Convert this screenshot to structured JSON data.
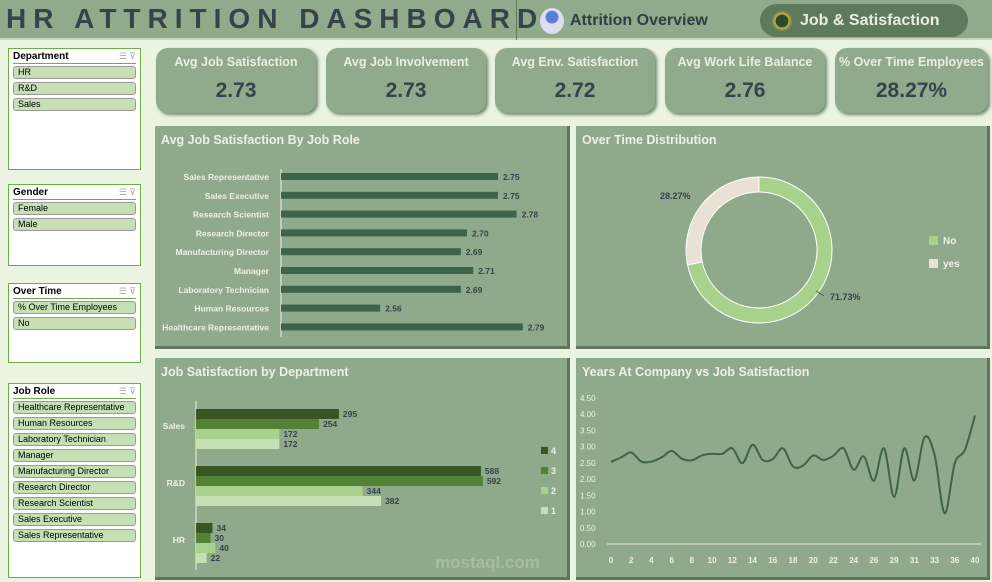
{
  "header": {
    "title": "HR ATTRITION DASHBOARD",
    "nav": [
      {
        "label": "Attrition Overview",
        "icon": "employee-avatar-icon"
      },
      {
        "label": "Job & Satisfaction",
        "icon": "team-satisfaction-icon",
        "active": true
      }
    ]
  },
  "kpis": [
    {
      "label": "Avg Job Satisfaction",
      "value": "2.73"
    },
    {
      "label": "Avg Job Involvement",
      "value": "2.73"
    },
    {
      "label": "Avg Env. Satisfaction",
      "value": "2.72"
    },
    {
      "label": "Avg Work Life Balance",
      "value": "2.76"
    },
    {
      "label": "% Over Time Employees",
      "value": "28.27%"
    }
  ],
  "slicers": [
    {
      "title": "Department",
      "items": [
        "HR",
        "R&D",
        "Sales"
      ]
    },
    {
      "title": "Gender",
      "items": [
        "Female",
        "Male"
      ]
    },
    {
      "title": "Over Time",
      "items": [
        "% Over Time Employees",
        "No"
      ]
    },
    {
      "title": "Job Role",
      "items": [
        "Healthcare Representative",
        "Human Resources",
        "Laboratory Technician",
        "Manager",
        "Manufacturing Director",
        "Research Director",
        "Research Scientist",
        "Sales Executive",
        "Sales Representative"
      ]
    }
  ],
  "colors": {
    "panel": "#8faa8a",
    "bar": "#3e6349",
    "text_dark": "#36434a",
    "no": "#a9d18e",
    "yes": "#e9e1d5",
    "s4": "#375623",
    "s3": "#548235",
    "s2": "#a9d18e",
    "s1": "#c5e0b4"
  },
  "chart_data": [
    {
      "type": "bar",
      "title": "Avg Job Satisfaction By Job Role",
      "orientation": "horizontal",
      "categories": [
        "Sales Representative",
        "Sales Executive",
        "Research Scientist",
        "Research Director",
        "Manufacturing Director",
        "Manager",
        "Laboratory Technician",
        "Human Resources",
        "Healthcare Representative"
      ],
      "values": [
        2.75,
        2.75,
        2.78,
        2.7,
        2.69,
        2.71,
        2.69,
        2.56,
        2.79
      ],
      "labels": [
        "2.75",
        "2.75",
        "2.78",
        "2.70",
        "2.69",
        "2.71",
        "2.69",
        "2.56",
        "2.79"
      ],
      "xlim": [
        2.4,
        2.85
      ]
    },
    {
      "type": "pie",
      "title": "Over Time Distribution",
      "donut": true,
      "categories": [
        "No",
        "yes"
      ],
      "values": [
        71.73,
        28.27
      ],
      "labels": [
        "71.73%",
        "28.27%"
      ],
      "legend": "right"
    },
    {
      "type": "bar",
      "title": "Job Satisfaction by Department",
      "orientation": "horizontal",
      "categories": [
        "Sales",
        "R&D",
        "HR"
      ],
      "series": [
        {
          "name": "4",
          "values": [
            295,
            588,
            34
          ]
        },
        {
          "name": "3",
          "values": [
            254,
            592,
            30
          ]
        },
        {
          "name": "2",
          "values": [
            172,
            344,
            40
          ]
        },
        {
          "name": "1",
          "values": [
            172,
            382,
            22
          ]
        }
      ],
      "legend": "right",
      "xlim": [
        0,
        700
      ]
    },
    {
      "type": "line",
      "title": "Years At Company vs Job Satisfaction",
      "x": [
        0,
        1,
        2,
        3,
        4,
        5,
        6,
        7,
        8,
        9,
        10,
        11,
        12,
        13,
        14,
        15,
        16,
        17,
        18,
        19,
        20,
        21,
        22,
        23,
        24,
        25,
        26,
        27,
        29,
        30,
        31,
        32,
        33,
        34,
        36,
        37,
        40
      ],
      "y": [
        2.53,
        2.67,
        2.82,
        2.54,
        2.54,
        2.67,
        2.87,
        2.63,
        2.58,
        2.73,
        2.78,
        2.78,
        2.95,
        2.49,
        3.06,
        2.59,
        2.62,
        2.95,
        2.39,
        2.42,
        2.73,
        2.59,
        2.72,
        2.95,
        2.29,
        2.7,
        1.95,
        2.95,
        1.45,
        2.95,
        1.96,
        3.29,
        2.75,
        0.95,
        2.49,
        2.9,
        3.96
      ],
      "xticks": [
        "0",
        "2",
        "4",
        "6",
        "8",
        "10",
        "12",
        "14",
        "16",
        "18",
        "20",
        "22",
        "24",
        "26",
        "29",
        "31",
        "33",
        "36",
        "40"
      ],
      "yticks": [
        "0.00",
        "0.50",
        "1.00",
        "1.50",
        "2.00",
        "2.50",
        "3.00",
        "3.50",
        "4.00",
        "4.50"
      ],
      "ylim": [
        0,
        4.5
      ]
    }
  ]
}
